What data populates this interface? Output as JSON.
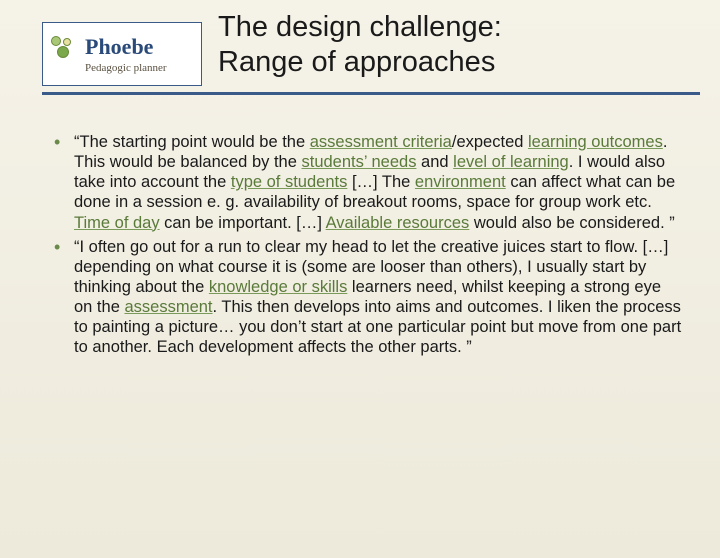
{
  "logo": {
    "name": "Phoebe",
    "subtitle": "Pedagogic planner"
  },
  "title": {
    "line1": "The design challenge:",
    "line2": "Range of approaches"
  },
  "colors": {
    "rule": "#3a5a8a",
    "highlight": "#5a7a3a",
    "bullet": "#6a8a4a",
    "bg_top": "#f5f2e8",
    "bg_bottom": "#edeadb"
  },
  "bullets": [
    {
      "segments": [
        {
          "t": "“The starting point would be the ",
          "hl": false
        },
        {
          "t": "assessment criteria",
          "hl": true
        },
        {
          "t": "/expected ",
          "hl": false
        },
        {
          "t": "learning outcomes",
          "hl": true
        },
        {
          "t": ". This would be balanced by the ",
          "hl": false
        },
        {
          "t": "students’ needs",
          "hl": true
        },
        {
          "t": " and ",
          "hl": false
        },
        {
          "t": "level of learning",
          "hl": true
        },
        {
          "t": ". I would also take into account the ",
          "hl": false
        },
        {
          "t": "type of students",
          "hl": true
        },
        {
          "t": " […] The ",
          "hl": false
        },
        {
          "t": "environment",
          "hl": true
        },
        {
          "t": " can affect what can be done in a session e. g. availability of breakout rooms, space for group work etc. ",
          "hl": false
        },
        {
          "t": "Time of day",
          "hl": true
        },
        {
          "t": " can be important. […] ",
          "hl": false
        },
        {
          "t": "Available resources",
          "hl": true
        },
        {
          "t": " would also be considered. ”",
          "hl": false
        }
      ]
    },
    {
      "segments": [
        {
          "t": "“I often go out for a run to clear my head to let the creative juices start to flow. […] depending on what course it is (some are looser than others), I usually start by thinking about the ",
          "hl": false
        },
        {
          "t": "knowledge or skills",
          "hl": true
        },
        {
          "t": " learners need, whilst keeping a strong eye on the ",
          "hl": false
        },
        {
          "t": "assessment",
          "hl": true
        },
        {
          "t": ". This then develops into aims and outcomes. I liken the process to painting a picture… you don’t start at one particular point but move from one part to another. Each development affects the other parts. ”",
          "hl": false
        }
      ]
    }
  ]
}
